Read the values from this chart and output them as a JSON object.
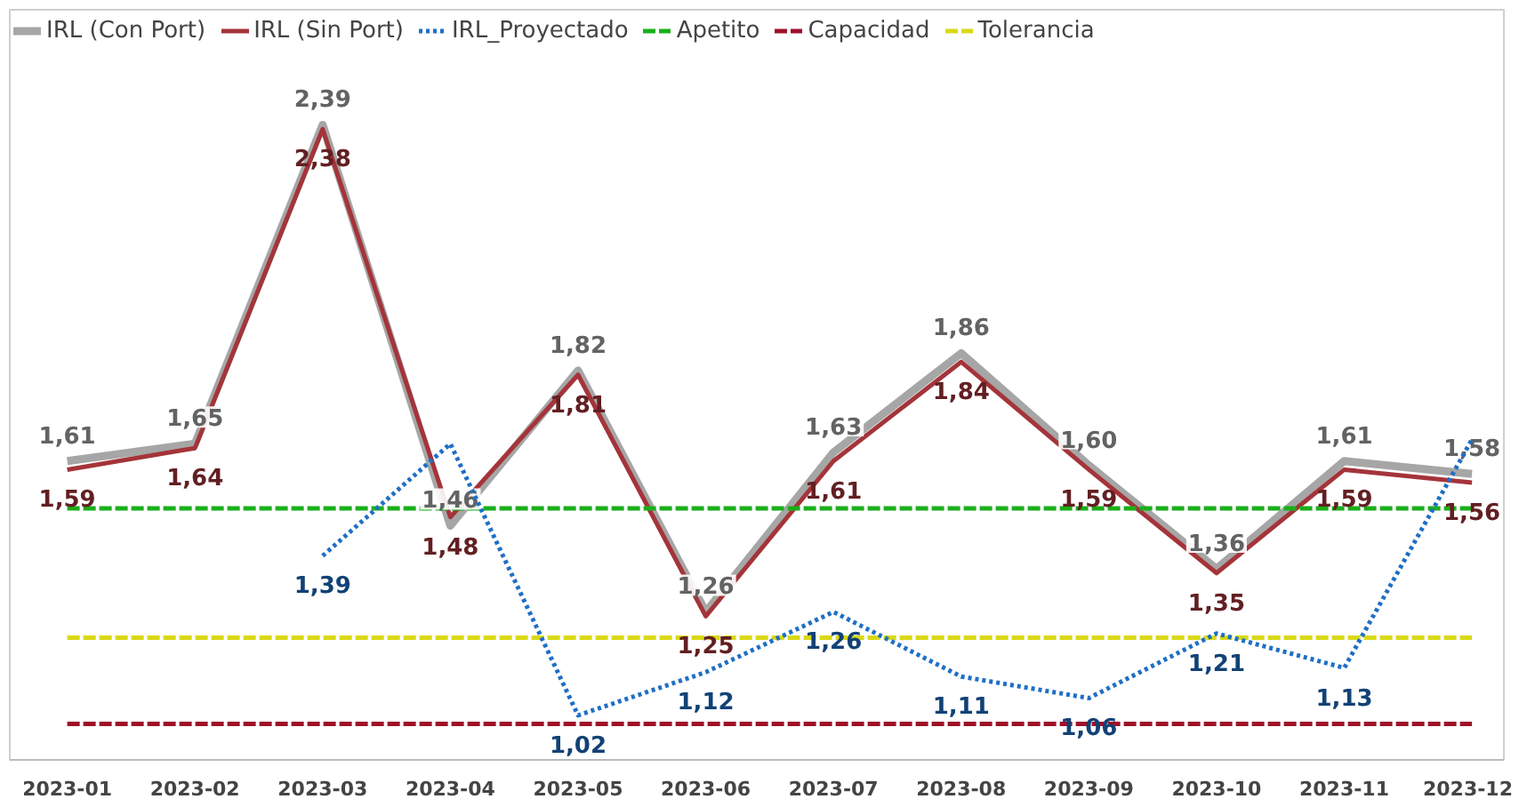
{
  "chart_data": {
    "type": "line",
    "categories": [
      "2023-01",
      "2023-02",
      "2023-03",
      "2023-04",
      "2023-05",
      "2023-06",
      "2023-07",
      "2023-08",
      "2023-09",
      "2023-10",
      "2023-11",
      "2023-12"
    ],
    "legend": "top left",
    "grid": false,
    "marker": "none",
    "series": [
      {
        "name": "IRL (Con Port)",
        "color": "#a6a6a6",
        "line_style": "solid",
        "values": [
          1.61,
          1.65,
          2.39,
          1.46,
          1.82,
          1.26,
          1.63,
          1.86,
          1.6,
          1.36,
          1.61,
          1.58
        ],
        "value_labels": [
          "1,61",
          "1,65",
          "2,39",
          "1,46",
          "1,82",
          "1,26",
          "1,63",
          "1,86",
          "1,60",
          "1,36",
          "1,61",
          "1,58"
        ]
      },
      {
        "name": "IRL (Sin Port)",
        "color": "#a4343a",
        "line_style": "solid",
        "values": [
          1.59,
          1.64,
          2.38,
          1.48,
          1.81,
          1.25,
          1.61,
          1.84,
          1.59,
          1.35,
          1.59,
          1.56
        ],
        "value_labels": [
          "1,59",
          "1,64",
          "2,38",
          "1,48",
          "1,81",
          "1,25",
          "1,61",
          "1,84",
          "1,59",
          "1,35",
          "1,59",
          "1,56"
        ]
      },
      {
        "name": "IRL_Proyectado",
        "color": "#1f6fc5",
        "line_style": "dotted",
        "values": [
          null,
          null,
          1.39,
          1.65,
          1.02,
          1.12,
          1.26,
          1.11,
          1.06,
          1.21,
          1.13,
          1.66
        ],
        "value_labels": [
          null,
          null,
          "1,39",
          null,
          "1,02",
          "1,12",
          "1,26",
          "1,11",
          "1,06",
          "1,21",
          "1,13",
          null
        ]
      },
      {
        "name": "Apetito",
        "color": "#1aaf1a",
        "line_style": "dashed",
        "values": [
          1.5,
          1.5,
          1.5,
          1.5,
          1.5,
          1.5,
          1.5,
          1.5,
          1.5,
          1.5,
          1.5,
          1.5
        ]
      },
      {
        "name": "Capacidad",
        "color": "#a0102a",
        "line_style": "dashed",
        "values": [
          1.0,
          1.0,
          1.0,
          1.0,
          1.0,
          1.0,
          1.0,
          1.0,
          1.0,
          1.0,
          1.0,
          1.0
        ]
      },
      {
        "name": "Tolerancia",
        "color": "#d9d916",
        "line_style": "dashed",
        "values": [
          1.2,
          1.2,
          1.2,
          1.2,
          1.2,
          1.2,
          1.2,
          1.2,
          1.2,
          1.2,
          1.2,
          1.2
        ]
      }
    ]
  }
}
